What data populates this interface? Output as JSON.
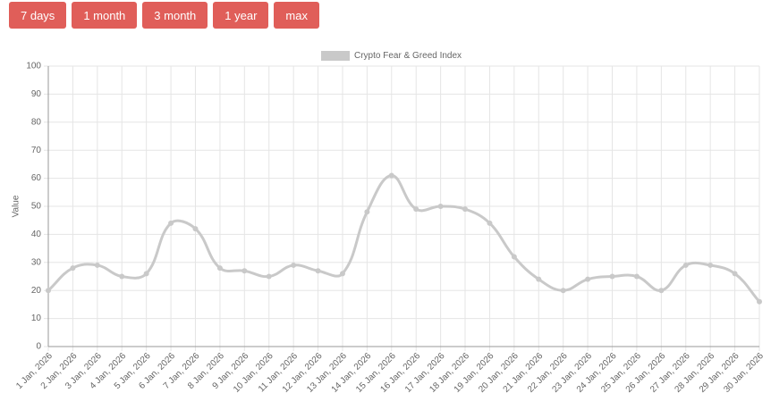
{
  "buttons": [
    "7 days",
    "1 month",
    "3 month",
    "1 year",
    "max"
  ],
  "chart_data": {
    "type": "line",
    "y_label": "Value",
    "categories": [
      "1 Jan, 2026",
      "2 Jan, 2026",
      "3 Jan, 2026",
      "4 Jan, 2026",
      "5 Jan, 2026",
      "6 Jan, 2026",
      "7 Jan, 2026",
      "8 Jan, 2026",
      "9 Jan, 2026",
      "10 Jan, 2026",
      "11 Jan, 2026",
      "12 Jan, 2026",
      "13 Jan, 2026",
      "14 Jan, 2026",
      "15 Jan, 2026",
      "16 Jan, 2026",
      "17 Jan, 2026",
      "18 Jan, 2026",
      "19 Jan, 2026",
      "20 Jan, 2026",
      "21 Jan, 2026",
      "22 Jan, 2026",
      "23 Jan, 2026",
      "24 Jan, 2026",
      "25 Jan, 2026",
      "26 Jan, 2026",
      "27 Jan, 2026",
      "28 Jan, 2026",
      "29 Jan, 2026",
      "30 Jan, 2026"
    ],
    "series": [
      {
        "name": "Crypto Fear & Greed Index",
        "color": "#c9c9c9",
        "values": [
          20,
          28,
          29,
          25,
          26,
          44,
          42,
          28,
          27,
          25,
          29,
          27,
          26,
          48,
          61,
          49,
          50,
          49,
          44,
          32,
          24,
          20,
          24,
          25,
          25,
          20,
          29,
          29,
          26,
          16
        ]
      }
    ],
    "ylim": [
      0,
      100
    ],
    "yticks": [
      0,
      10,
      20,
      30,
      40,
      50,
      60,
      70,
      80,
      90,
      100
    ],
    "grid": true,
    "legend": "top"
  }
}
